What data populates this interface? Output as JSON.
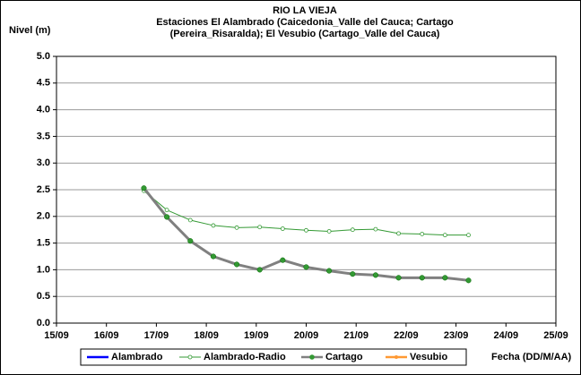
{
  "chart_data": {
    "type": "line",
    "title": [
      "RIO LA VIEJA",
      "Estaciones El Alambrado (Caicedonia_Valle del Cauca; Cartago",
      "(Pereira_Risaralda);  El Vesubio (Cartago_Valle del Cauca)"
    ],
    "y_label": "Nivel (m)",
    "x_label": "Fecha (DD/M/AA)",
    "x": [
      16.75,
      17.21,
      17.68,
      18.14,
      18.61,
      19.07,
      19.53,
      20.0,
      20.46,
      20.93,
      21.39,
      21.85,
      22.32,
      22.78,
      23.25
    ],
    "series": [
      {
        "name": "Alambrado",
        "color": "#0000ff",
        "values": [
          null,
          null,
          null,
          null,
          null,
          null,
          null,
          null,
          null,
          null,
          null,
          null,
          null,
          null,
          null
        ]
      },
      {
        "name": "Alambrado-Radio",
        "color": "#339933",
        "values": [
          2.48,
          2.12,
          1.93,
          1.83,
          1.79,
          1.8,
          1.77,
          1.74,
          1.72,
          1.75,
          1.76,
          1.68,
          1.67,
          1.65,
          1.65
        ]
      },
      {
        "name": "Cartago",
        "color": "#808080",
        "values": [
          2.53,
          1.99,
          1.54,
          1.25,
          1.1,
          1.0,
          1.18,
          1.05,
          0.98,
          0.92,
          0.9,
          0.85,
          0.85,
          0.85,
          0.8
        ]
      },
      {
        "name": "Vesubio",
        "color": "#ff9933",
        "values": [
          null,
          null,
          null,
          null,
          null,
          null,
          null,
          null,
          null,
          null,
          null,
          null,
          null,
          null,
          null
        ]
      }
    ],
    "xlim": [
      15,
      25
    ],
    "xticks": [
      {
        "value": 15,
        "label": "15/09"
      },
      {
        "value": 16,
        "label": "16/09"
      },
      {
        "value": 17,
        "label": "17/09"
      },
      {
        "value": 18,
        "label": "18/09"
      },
      {
        "value": 19,
        "label": "19/09"
      },
      {
        "value": 20,
        "label": "20/09"
      },
      {
        "value": 21,
        "label": "21/09"
      },
      {
        "value": 22,
        "label": "22/09"
      },
      {
        "value": 23,
        "label": "23/09"
      },
      {
        "value": 24,
        "label": "24/09"
      },
      {
        "value": 25,
        "label": "25/09"
      }
    ],
    "ylim": [
      0,
      5
    ],
    "yticks": [
      {
        "value": 0,
        "label": "0.0"
      },
      {
        "value": 0.5,
        "label": "0.5"
      },
      {
        "value": 1,
        "label": "1.0"
      },
      {
        "value": 1.5,
        "label": "1.5"
      },
      {
        "value": 2,
        "label": "2.0"
      },
      {
        "value": 2.5,
        "label": "2.5"
      },
      {
        "value": 3,
        "label": "3.0"
      },
      {
        "value": 3.5,
        "label": "3.5"
      },
      {
        "value": 4,
        "label": "4.0"
      },
      {
        "value": 4.5,
        "label": "4.5"
      },
      {
        "value": 5,
        "label": "5.0"
      }
    ],
    "grid": true
  }
}
